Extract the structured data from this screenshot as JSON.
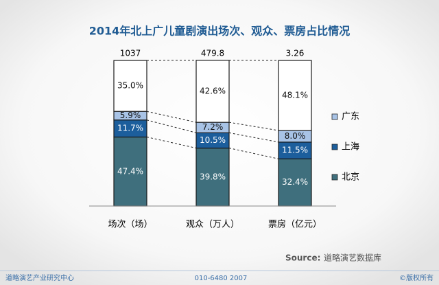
{
  "chart_data": {
    "type": "stacked_bar_100",
    "title": "2014年北上广儿童剧演出场次、观众、票房占比情况",
    "categories": [
      "场次（场）",
      "观众（万人）",
      "票房（亿元）"
    ],
    "totals": [
      1037,
      479.8,
      3.26
    ],
    "series": [
      {
        "name": "北京",
        "color": "#3f6f7d",
        "values": [
          47.4,
          39.8,
          32.4
        ],
        "value_labels": [
          "47.4%",
          "39.8%",
          "32.4%"
        ]
      },
      {
        "name": "上海",
        "color": "#1c5e9c",
        "values": [
          11.7,
          10.5,
          11.5
        ],
        "value_labels": [
          "11.7%",
          "10.5%",
          "11.5%"
        ]
      },
      {
        "name": "广东",
        "color": "#a8c3e6",
        "values": [
          5.9,
          7.2,
          8.0
        ],
        "value_labels": [
          "5.9%",
          "7.2%",
          "8.0%"
        ]
      },
      {
        "color": "#ffffff",
        "values": [
          35.0,
          42.6,
          48.1
        ],
        "value_labels": [
          "35.0%",
          "42.6%",
          "48.1%"
        ]
      }
    ],
    "ylim": [
      0,
      100
    ],
    "source_label": "Source:",
    "source": "道略演艺数据库",
    "footer": [
      "道略演艺产业研究中心",
      "010-6480 2007",
      "©版权所有"
    ]
  }
}
